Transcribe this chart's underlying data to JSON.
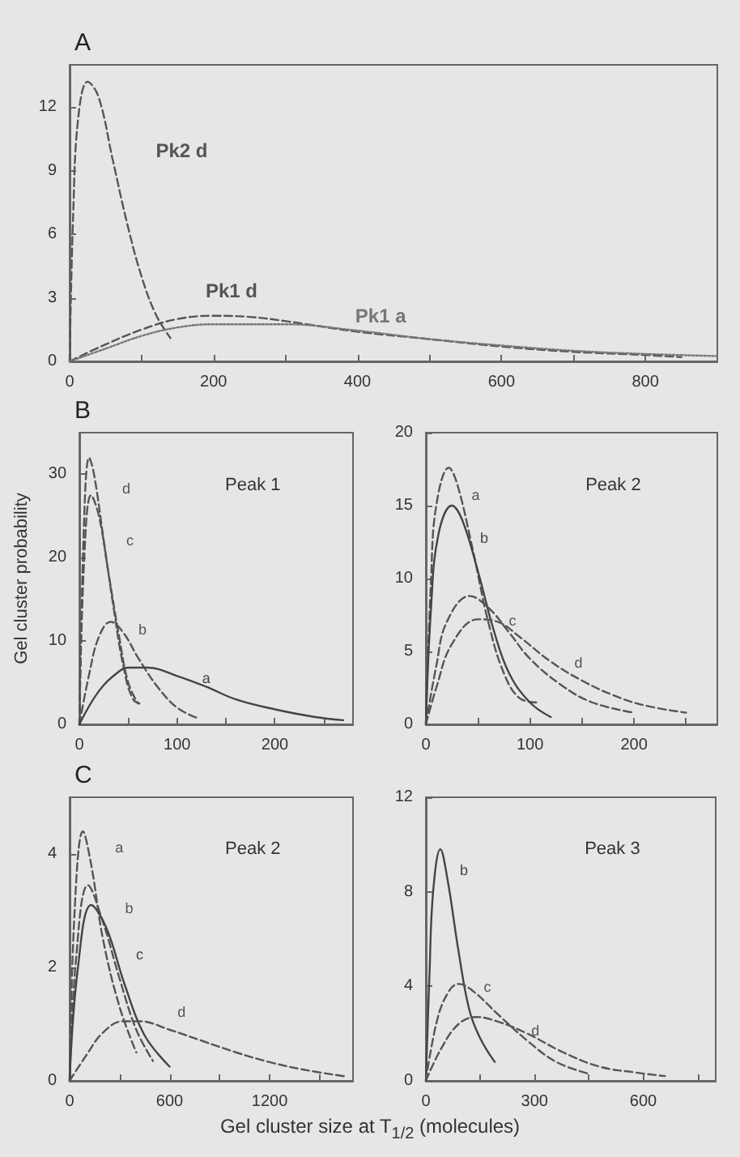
{
  "chart_data": [
    {
      "type": "line",
      "title": "A",
      "xlim": [
        0,
        900
      ],
      "ylim": [
        0,
        14
      ],
      "xticks": [
        0,
        {
          "value": 100,
          "label": null
        },
        200,
        {
          "value": 300,
          "label": null
        },
        400,
        {
          "value": 500,
          "label": null
        },
        600,
        {
          "value": 700,
          "label": null
        },
        800
      ],
      "yticks": [
        0,
        3,
        6,
        9,
        12
      ],
      "grid": false,
      "legend": false,
      "marker": "none",
      "series": [
        {
          "name": "Pk2 d",
          "color": "#555555",
          "line_style": "dashed",
          "x": [
            0,
            5,
            12,
            25,
            40,
            60,
            80,
            100,
            120,
            140
          ],
          "values": [
            0,
            7,
            11.5,
            13.2,
            12.5,
            9.5,
            6.5,
            4,
            2.2,
            1.1
          ]
        },
        {
          "name": "Pk1 d",
          "color": "#555555",
          "line_style": "dashed",
          "x": [
            0,
            50,
            100,
            150,
            200,
            250,
            300,
            400,
            500,
            600,
            700,
            800,
            850
          ],
          "values": [
            0,
            0.8,
            1.5,
            2,
            2.15,
            2.1,
            1.9,
            1.4,
            1.05,
            0.7,
            0.45,
            0.3,
            0.2
          ]
        },
        {
          "name": "Pk1 a",
          "color": "#777777",
          "line_style": "dotted",
          "x": [
            0,
            50,
            100,
            150,
            200,
            300,
            400,
            500,
            600,
            700,
            800,
            900
          ],
          "values": [
            0,
            0.6,
            1.2,
            1.6,
            1.75,
            1.75,
            1.45,
            1.05,
            0.75,
            0.5,
            0.35,
            0.25
          ]
        }
      ]
    },
    {
      "type": "line",
      "title": "B",
      "subtitle": "Peak 1",
      "ylabel": "Gel cluster probability",
      "xlim": [
        0,
        280
      ],
      "ylim": [
        0,
        35
      ],
      "xticks": [
        0,
        {
          "value": 50,
          "label": null
        },
        100,
        {
          "value": 150,
          "label": null
        },
        200,
        {
          "value": 250,
          "label": null
        }
      ],
      "yticks": [
        0,
        10,
        20,
        30
      ],
      "grid": false,
      "legend": false,
      "marker": "none",
      "series": [
        {
          "name": "d",
          "color": "#555555",
          "line_style": "dashed",
          "x": [
            0,
            5,
            10,
            15,
            25,
            35,
            45,
            55,
            65
          ],
          "values": [
            0,
            25,
            32,
            30,
            22,
            14,
            7,
            3,
            2.4
          ]
        },
        {
          "name": "c",
          "color": "#555555",
          "line_style": "dashed",
          "x": [
            0,
            5,
            12,
            20,
            30,
            40,
            50,
            60
          ],
          "values": [
            0,
            20,
            27.5,
            25,
            18,
            11,
            5,
            2.5
          ]
        },
        {
          "name": "b",
          "color": "#555555",
          "line_style": "dashed",
          "x": [
            0,
            10,
            20,
            32,
            45,
            60,
            80,
            100,
            120
          ],
          "values": [
            0,
            6,
            10.5,
            12.3,
            11,
            8,
            4.5,
            2,
            0.8
          ]
        },
        {
          "name": "a",
          "color": "#444444",
          "line_style": "solid",
          "x": [
            0,
            20,
            40,
            50,
            70,
            100,
            130,
            160,
            200,
            240,
            270
          ],
          "values": [
            0,
            4,
            6.3,
            6.8,
            6.8,
            5.8,
            4.5,
            3,
            1.8,
            0.9,
            0.5
          ]
        }
      ]
    },
    {
      "type": "line",
      "subtitle": "Peak 2",
      "xlim": [
        0,
        280
      ],
      "ylim": [
        0,
        20
      ],
      "xticks": [
        0,
        {
          "value": 50,
          "label": null
        },
        100,
        {
          "value": 150,
          "label": null
        },
        200,
        {
          "value": 250,
          "label": null
        }
      ],
      "yticks": [
        0,
        5,
        10,
        15,
        20
      ],
      "grid": false,
      "legend": false,
      "marker": "none",
      "series": [
        {
          "name": "a",
          "color": "#555555",
          "line_style": "dashed",
          "x": [
            0,
            5,
            10,
            22,
            30,
            45,
            60,
            75,
            90,
            107
          ],
          "values": [
            0,
            10,
            15,
            17.6,
            16.5,
            12,
            7,
            3.5,
            1.8,
            1.5
          ]
        },
        {
          "name": "b",
          "color": "#444444",
          "line_style": "solid",
          "x": [
            0,
            5,
            12,
            25,
            35,
            50,
            65,
            80,
            100,
            120
          ],
          "values": [
            0,
            8,
            13,
            15,
            14,
            10.5,
            6.5,
            3.5,
            1.5,
            0.5
          ]
        },
        {
          "name": "c",
          "color": "#555555",
          "line_style": "dashed",
          "x": [
            0,
            10,
            20,
            42,
            60,
            80,
            100,
            130,
            160,
            200
          ],
          "values": [
            0,
            4,
            7,
            8.8,
            8,
            6.3,
            4.5,
            2.7,
            1.5,
            0.8
          ]
        },
        {
          "name": "d",
          "color": "#555555",
          "line_style": "dashed",
          "x": [
            0,
            10,
            25,
            50,
            70,
            90,
            120,
            150,
            180,
            210,
            250
          ],
          "values": [
            0,
            2.5,
            5.5,
            7.2,
            7,
            6,
            4.3,
            3,
            2,
            1.3,
            0.8
          ]
        }
      ]
    },
    {
      "type": "line",
      "title": "C",
      "subtitle": "Peak 2",
      "xlabel": "Gel cluster size at T$_{1/2}$ (molecules)",
      "xlim": [
        0,
        1700
      ],
      "ylim": [
        0,
        5
      ],
      "xticks": [
        0,
        {
          "value": 300,
          "label": null
        },
        600,
        {
          "value": 900,
          "label": null
        },
        1200,
        {
          "value": 1500,
          "label": null
        }
      ],
      "yticks": [
        0,
        2,
        4
      ],
      "grid": false,
      "legend": false,
      "marker": "none",
      "series": [
        {
          "name": "a",
          "color": "#555555",
          "line_style": "dashed",
          "x": [
            0,
            30,
            80,
            130,
            200,
            300,
            400
          ],
          "values": [
            0,
            3,
            4.4,
            3.8,
            2.5,
            1.3,
            0.5
          ]
        },
        {
          "name": "b",
          "color": "#555555",
          "line_style": "dashed",
          "x": [
            0,
            40,
            110,
            200,
            300,
            400,
            500
          ],
          "values": [
            0,
            2.2,
            3.45,
            2.8,
            1.8,
            0.9,
            0.35
          ]
        },
        {
          "name": "c",
          "color": "#444444",
          "line_style": "solid",
          "x": [
            0,
            50,
            130,
            220,
            330,
            450,
            600
          ],
          "values": [
            0,
            2,
            3.1,
            2.7,
            1.7,
            0.8,
            0.25
          ]
        },
        {
          "name": "d",
          "color": "#555555",
          "line_style": "dashed",
          "x": [
            0,
            100,
            200,
            320,
            420,
            600,
            800,
            1000,
            1200,
            1400,
            1650
          ],
          "values": [
            0,
            0.45,
            0.85,
            1.05,
            1.05,
            0.9,
            0.7,
            0.5,
            0.33,
            0.2,
            0.08
          ]
        }
      ]
    },
    {
      "type": "line",
      "subtitle": "Peak 3",
      "xlim": [
        0,
        800
      ],
      "ylim": [
        0,
        12
      ],
      "xticks": [
        0,
        {
          "value": 150,
          "label": null
        },
        300,
        {
          "value": 450,
          "label": null
        },
        600,
        {
          "value": 750,
          "label": null
        }
      ],
      "yticks": [
        0,
        4,
        8,
        12
      ],
      "grid": false,
      "legend": false,
      "marker": "none",
      "series": [
        {
          "name": "b",
          "color": "#444444",
          "line_style": "solid",
          "x": [
            0,
            10,
            20,
            40,
            60,
            90,
            120,
            150,
            190
          ],
          "values": [
            0,
            4.5,
            8,
            9.8,
            8.5,
            5.5,
            3,
            1.8,
            0.8
          ]
        },
        {
          "name": "c",
          "color": "#555555",
          "line_style": "dashed",
          "x": [
            0,
            30,
            60,
            90,
            130,
            200,
            280,
            360,
            450
          ],
          "values": [
            0,
            2.5,
            3.7,
            4.1,
            3.8,
            2.8,
            1.7,
            0.8,
            0.3
          ]
        },
        {
          "name": "d",
          "color": "#555555",
          "line_style": "dashed",
          "x": [
            0,
            40,
            90,
            140,
            200,
            280,
            380,
            480,
            580,
            660
          ],
          "values": [
            0,
            1.3,
            2.4,
            2.7,
            2.5,
            2,
            1.2,
            0.6,
            0.35,
            0.2
          ]
        }
      ]
    }
  ]
}
